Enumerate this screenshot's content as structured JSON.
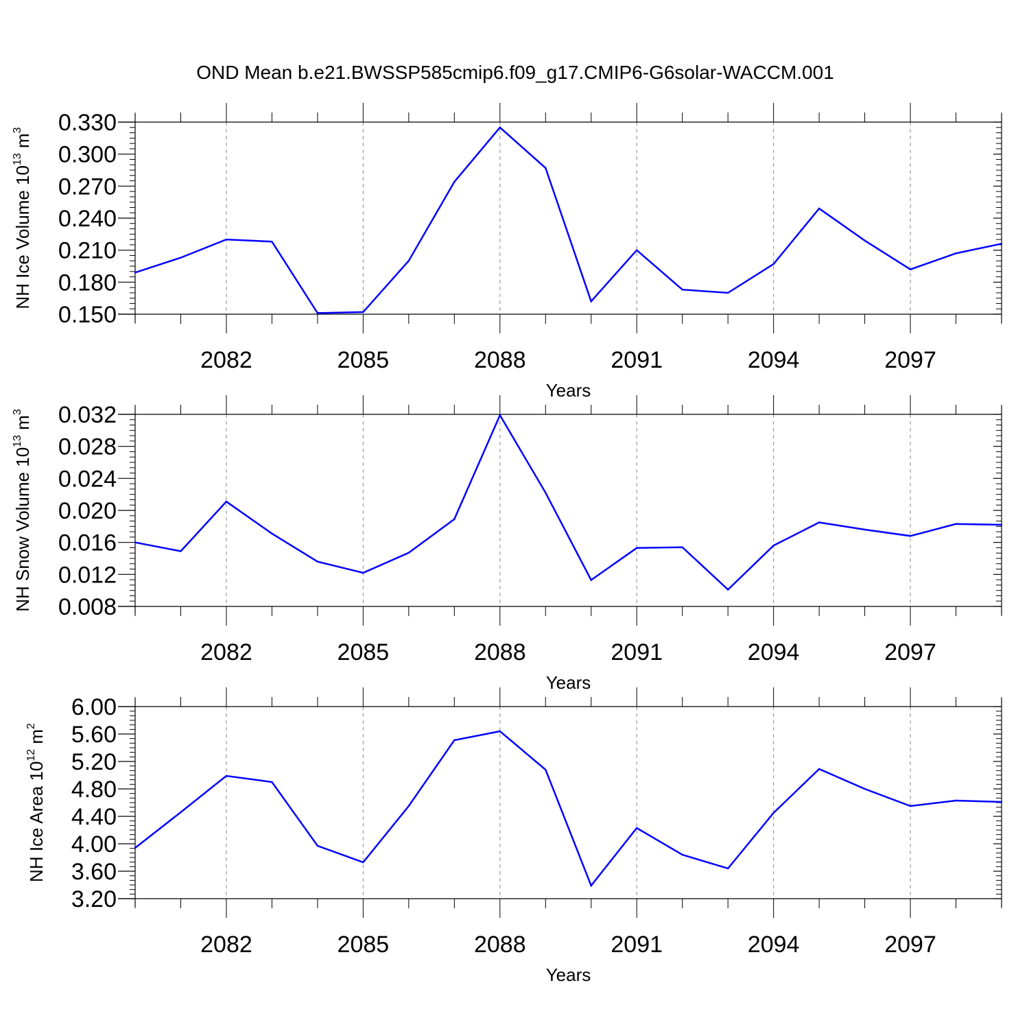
{
  "title": "OND Mean b.e21.BWSSP585cmip6.f09_g17.CMIP6-G6solar-WACCM.001",
  "colors": {
    "series": "#0000ff",
    "axis": "#000000",
    "grid": "#888888"
  },
  "chart_data": [
    {
      "type": "line",
      "xlabel": "Years",
      "ylabel": {
        "text": "NH Ice Volume 10",
        "exp": "13",
        "unit": " m",
        "unit_exp": "3"
      },
      "x": [
        2080,
        2081,
        2082,
        2083,
        2084,
        2085,
        2086,
        2087,
        2088,
        2089,
        2090,
        2091,
        2092,
        2093,
        2094,
        2095,
        2096,
        2097,
        2098,
        2099
      ],
      "values": [
        0.189,
        0.203,
        0.22,
        0.218,
        0.151,
        0.152,
        0.2,
        0.274,
        0.325,
        0.287,
        0.162,
        0.21,
        0.173,
        0.17,
        0.197,
        0.249,
        0.219,
        0.192,
        0.207,
        0.216
      ],
      "xlim": [
        2080,
        2099
      ],
      "ylim": [
        0.15,
        0.33
      ],
      "xticks": [
        "2082",
        "2085",
        "2088",
        "2091",
        "2094",
        "2097"
      ],
      "xtick_values": [
        2082,
        2085,
        2088,
        2091,
        2094,
        2097
      ],
      "yticks": [
        "0.150",
        "0.180",
        "0.210",
        "0.240",
        "0.270",
        "0.300",
        "0.330"
      ],
      "ytick_values": [
        0.15,
        0.18,
        0.21,
        0.24,
        0.27,
        0.3,
        0.33
      ],
      "grid": "vertical dashed at major x ticks"
    },
    {
      "type": "line",
      "xlabel": "Years",
      "ylabel": {
        "text": "NH Snow Volume 10",
        "exp": "13",
        "unit": " m",
        "unit_exp": "3"
      },
      "x": [
        2080,
        2081,
        2082,
        2083,
        2084,
        2085,
        2086,
        2087,
        2088,
        2089,
        2090,
        2091,
        2092,
        2093,
        2094,
        2095,
        2096,
        2097,
        2098,
        2099
      ],
      "values": [
        0.016,
        0.0149,
        0.0211,
        0.0171,
        0.0136,
        0.0122,
        0.0147,
        0.0189,
        0.0319,
        0.0222,
        0.0113,
        0.0153,
        0.0154,
        0.0101,
        0.0156,
        0.0185,
        0.0176,
        0.0168,
        0.0183,
        0.0182
      ],
      "xlim": [
        2080,
        2099
      ],
      "ylim": [
        0.008,
        0.032
      ],
      "xticks": [
        "2082",
        "2085",
        "2088",
        "2091",
        "2094",
        "2097"
      ],
      "xtick_values": [
        2082,
        2085,
        2088,
        2091,
        2094,
        2097
      ],
      "yticks": [
        "0.008",
        "0.012",
        "0.016",
        "0.020",
        "0.024",
        "0.028",
        "0.032"
      ],
      "ytick_values": [
        0.008,
        0.012,
        0.016,
        0.02,
        0.024,
        0.028,
        0.032
      ],
      "grid": "vertical dashed at major x ticks"
    },
    {
      "type": "line",
      "xlabel": "Years",
      "ylabel": {
        "text": "NH Ice Area 10",
        "exp": "12",
        "unit": " m",
        "unit_exp": "2"
      },
      "x": [
        2080,
        2081,
        2082,
        2083,
        2084,
        2085,
        2086,
        2087,
        2088,
        2089,
        2090,
        2091,
        2092,
        2093,
        2094,
        2095,
        2096,
        2097,
        2098,
        2099
      ],
      "values": [
        3.94,
        4.46,
        4.99,
        4.9,
        3.97,
        3.73,
        4.55,
        5.51,
        5.64,
        5.08,
        3.39,
        4.23,
        3.84,
        3.64,
        4.45,
        5.09,
        4.8,
        4.55,
        4.63,
        4.61
      ],
      "xlim": [
        2080,
        2099
      ],
      "ylim": [
        3.2,
        6.0
      ],
      "xticks": [
        "2082",
        "2085",
        "2088",
        "2091",
        "2094",
        "2097"
      ],
      "xtick_values": [
        2082,
        2085,
        2088,
        2091,
        2094,
        2097
      ],
      "yticks": [
        "3.20",
        "3.60",
        "4.00",
        "4.40",
        "4.80",
        "5.20",
        "5.60",
        "6.00"
      ],
      "ytick_values": [
        3.2,
        3.6,
        4.0,
        4.4,
        4.8,
        5.2,
        5.6,
        6.0
      ],
      "grid": "vertical dashed at major x ticks"
    }
  ]
}
